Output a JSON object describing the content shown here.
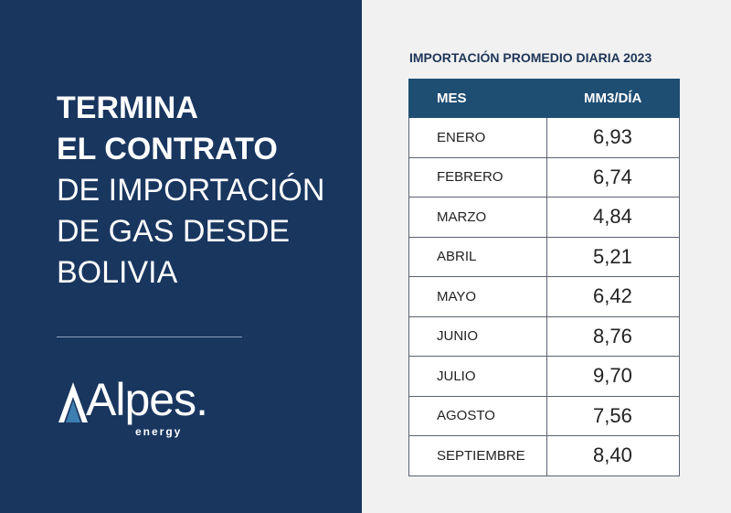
{
  "headline": {
    "bold_lines": [
      "TERMINA",
      "EL CONTRATO"
    ],
    "light_lines": [
      "DE IMPORTACIÓN",
      "DE GAS DESDE",
      "BOLIVIA"
    ]
  },
  "logo": {
    "name": "Alpes.",
    "sub": "energy"
  },
  "colors": {
    "panel": "#19365f",
    "header": "#1f4e73",
    "background": "#f1f1f1"
  },
  "chart_data": {
    "type": "table",
    "title": "IMPORTACIÓN PROMEDIO DIARIA 2023",
    "columns": [
      "MES",
      "MM3/DÍA"
    ],
    "rows": [
      [
        "ENERO",
        "6,93"
      ],
      [
        "FEBRERO",
        "6,74"
      ],
      [
        "MARZO",
        "4,84"
      ],
      [
        "ABRIL",
        "5,21"
      ],
      [
        "MAYO",
        "6,42"
      ],
      [
        "JUNIO",
        "8,76"
      ],
      [
        "JULIO",
        "9,70"
      ],
      [
        "AGOSTO",
        "7,56"
      ],
      [
        "SEPTIEMBRE",
        "8,40"
      ]
    ]
  }
}
